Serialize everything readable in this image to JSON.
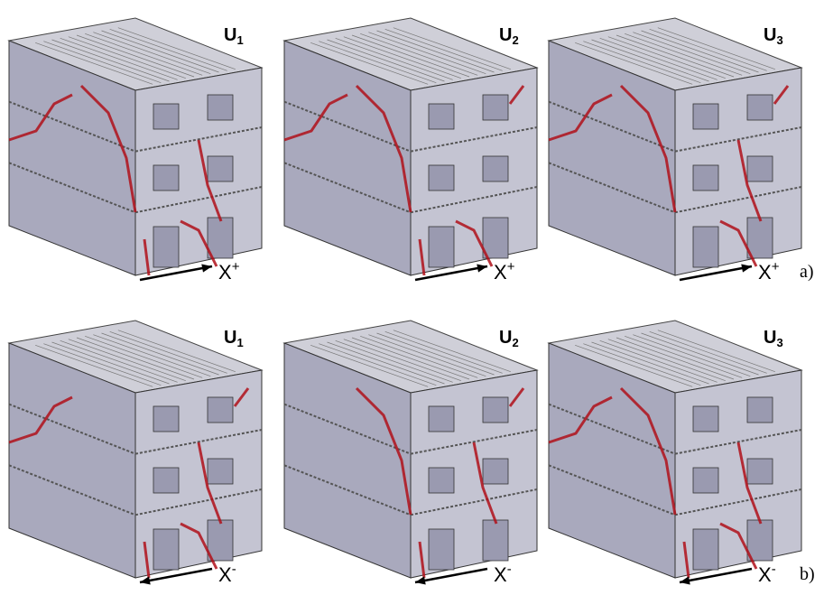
{
  "rows": [
    {
      "tag": "a)",
      "panels": [
        {
          "label": "U",
          "subscript": "1",
          "axis": "X",
          "sign": "+"
        },
        {
          "label": "U",
          "subscript": "2",
          "axis": "X",
          "sign": "+"
        },
        {
          "label": "U",
          "subscript": "3",
          "axis": "X",
          "sign": "+"
        }
      ]
    },
    {
      "tag": "b)",
      "panels": [
        {
          "label": "U",
          "subscript": "1",
          "axis": "X",
          "sign": "-"
        },
        {
          "label": "U",
          "subscript": "2",
          "axis": "X",
          "sign": "-"
        },
        {
          "label": "U",
          "subscript": "3",
          "axis": "X",
          "sign": "-"
        }
      ]
    }
  ]
}
